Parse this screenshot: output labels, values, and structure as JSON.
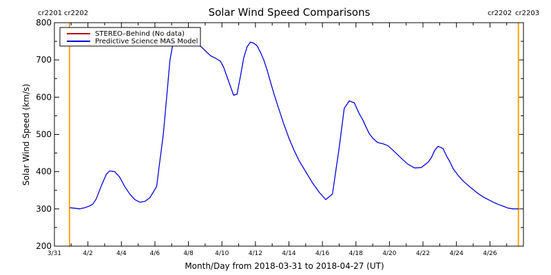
{
  "chart_data": {
    "type": "line",
    "title": "Solar Wind Speed Comparisons",
    "ylabel": "Solar Wind Speed (km/s)",
    "xlabel": "Month/Day from 2018-03-31 to 2018-04-27 (UT)",
    "ylim": [
      200,
      800
    ],
    "xlim": [
      0,
      28
    ],
    "y_ticks": [
      200,
      300,
      400,
      500,
      600,
      700,
      800
    ],
    "x_ticks": [
      {
        "day": 0,
        "label": "3/31"
      },
      {
        "day": 2,
        "label": "4/2"
      },
      {
        "day": 4,
        "label": "4/4"
      },
      {
        "day": 6,
        "label": "4/6"
      },
      {
        "day": 8,
        "label": "4/8"
      },
      {
        "day": 10,
        "label": "4/10"
      },
      {
        "day": 12,
        "label": "4/12"
      },
      {
        "day": 14,
        "label": "4/14"
      },
      {
        "day": 16,
        "label": "4/16"
      },
      {
        "day": 18,
        "label": "4/18"
      },
      {
        "day": 20,
        "label": "4/20"
      },
      {
        "day": 22,
        "label": "4/22"
      },
      {
        "day": 24,
        "label": "4/24"
      },
      {
        "day": 26,
        "label": "4/26"
      }
    ],
    "carrington_markers": [
      {
        "day": 0.9,
        "left_label": "cr2201",
        "right_label": "cr2202",
        "color": "#ffa500"
      },
      {
        "day": 27.7,
        "left_label": "cr2202",
        "right_label": "cr2203",
        "color": "#ffa500"
      }
    ],
    "legend": {
      "placement": "top-left",
      "entries": [
        {
          "label": "STEREO–Behind (No data)",
          "color": "#bb0000"
        },
        {
          "label": "Predictive Science MAS Model",
          "color": "#0000dd"
        }
      ]
    },
    "series": [
      {
        "name": "Predictive Science MAS Model",
        "color": "#0000dd",
        "x": [
          0.92,
          1.2,
          1.5,
          1.8,
          2.1,
          2.3,
          2.5,
          2.8,
          3.1,
          3.3,
          3.6,
          3.9,
          4.2,
          4.5,
          4.8,
          5.1,
          5.4,
          5.7,
          5.9,
          6.1,
          6.3,
          6.5,
          6.7,
          6.9,
          7.1,
          7.3,
          7.5,
          7.7,
          7.9,
          8.1,
          8.4,
          8.7,
          9.0,
          9.3,
          9.6,
          9.9,
          10.1,
          10.3,
          10.5,
          10.7,
          10.9,
          11.1,
          11.3,
          11.5,
          11.7,
          11.9,
          12.1,
          12.3,
          12.5,
          12.7,
          12.9,
          13.1,
          13.4,
          13.7,
          14.0,
          14.3,
          14.6,
          15.0,
          15.4,
          15.8,
          16.2,
          16.6,
          17.0,
          17.3,
          17.6,
          17.9,
          18.2,
          18.4,
          18.6,
          18.8,
          19.0,
          19.3,
          19.6,
          19.9,
          20.2,
          20.5,
          20.8,
          21.1,
          21.5,
          21.9,
          22.3,
          22.5,
          22.7,
          22.9,
          23.2,
          23.4,
          23.6,
          23.8,
          24.1,
          24.4,
          24.7,
          25.0,
          25.3,
          25.6,
          25.9,
          26.2,
          26.5,
          26.8,
          27.1,
          27.4,
          27.7
        ],
        "y": [
          303,
          302,
          300,
          303,
          308,
          313,
          327,
          362,
          393,
          402,
          400,
          385,
          360,
          340,
          325,
          318,
          320,
          330,
          345,
          360,
          430,
          500,
          600,
          700,
          750,
          758,
          755,
          752,
          750,
          748,
          745,
          738,
          725,
          712,
          705,
          697,
          681,
          655,
          630,
          605,
          608,
          655,
          705,
          735,
          748,
          745,
          738,
          720,
          700,
          672,
          641,
          610,
          568,
          527,
          490,
          458,
          430,
          400,
          370,
          345,
          325,
          340,
          465,
          570,
          590,
          585,
          555,
          540,
          520,
          502,
          490,
          478,
          475,
          470,
          458,
          445,
          432,
          420,
          410,
          411,
          425,
          437,
          457,
          468,
          462,
          443,
          427,
          408,
          390,
          375,
          363,
          352,
          341,
          332,
          325,
          318,
          312,
          307,
          302,
          300,
          300
        ]
      }
    ],
    "grid": false
  }
}
